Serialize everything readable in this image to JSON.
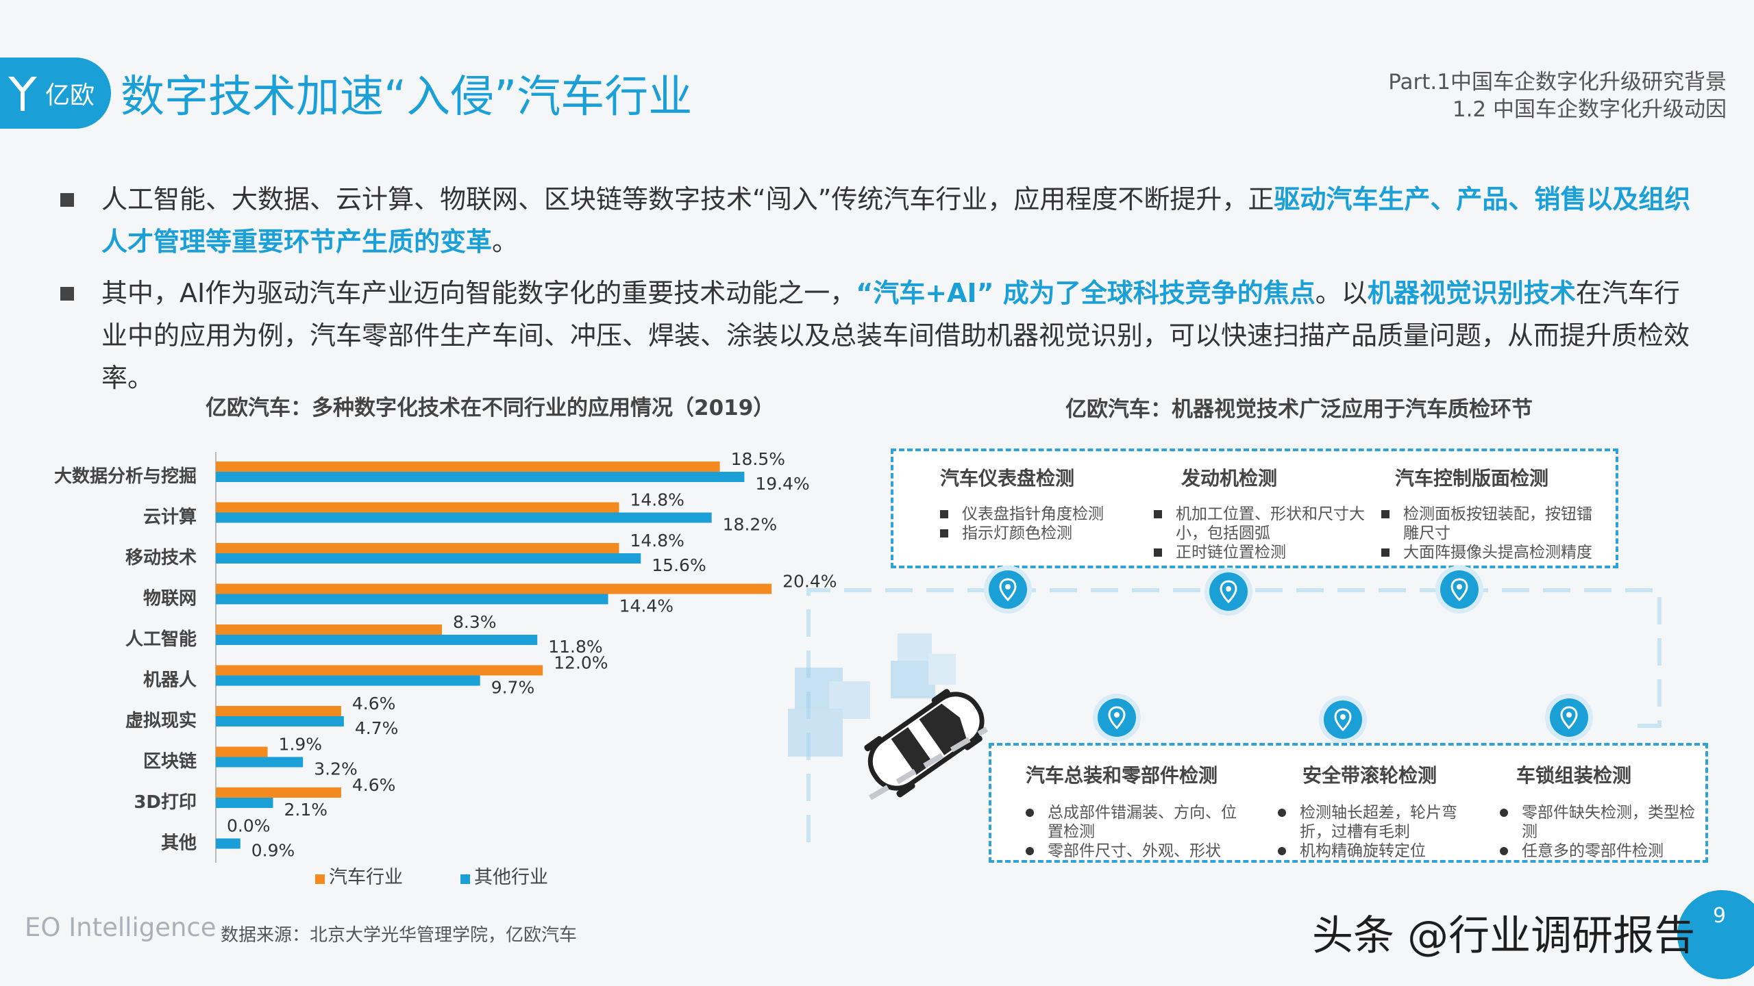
{
  "header": {
    "logo_text": "亿欧",
    "title": "数字技术加速“入侵”汽车行业",
    "part": "Part.1中国车企数字化升级研究背景",
    "section": "1.2 中国车企数字化升级动因"
  },
  "bullets": [
    {
      "segments": [
        {
          "text": "人工智能、大数据、云计算、物联网、区块链等数字技术“闯入”传统汽车行业，应用程度不断提升，正",
          "hl": false
        },
        {
          "text": "驱动汽车生产、产品、销售以及组织人才管理等重要环节产生质的变革",
          "hl": true
        },
        {
          "text": "。",
          "hl": false
        }
      ]
    },
    {
      "segments": [
        {
          "text": "其中，AI作为驱动汽车产业迈向智能数字化的重要技术动能之一，",
          "hl": false
        },
        {
          "text": "“汽车+AI” 成为了全球科技竞争的焦点",
          "hl": true
        },
        {
          "text": "。以",
          "hl": false
        },
        {
          "text": "机器视觉识别技术",
          "hl": true
        },
        {
          "text": "在汽车行业中的应用为例，汽车零部件生产车间、冲压、焊装、涂装以及总装车间借助机器视觉识别，可以快速扫描产品质量问题，从而提升质检效率。",
          "hl": false
        }
      ]
    }
  ],
  "chart_data": {
    "type": "bar",
    "orientation": "horizontal",
    "title": "亿欧汽车：多种数字化技术在不同行业的应用情况（2019）",
    "categories": [
      "大数据分析与挖掘",
      "云计算",
      "移动技术",
      "物联网",
      "人工智能",
      "机器人",
      "虚拟现实",
      "区块链",
      "3D打印",
      "其他"
    ],
    "series": [
      {
        "name": "汽车行业",
        "values": [
          18.5,
          14.8,
          14.8,
          20.4,
          8.3,
          12.0,
          4.6,
          1.9,
          4.6,
          0.0
        ],
        "color": "#f28a1f"
      },
      {
        "name": "其他行业",
        "values": [
          19.4,
          18.2,
          15.6,
          14.4,
          11.8,
          9.7,
          4.7,
          3.2,
          2.1,
          0.9
        ],
        "color": "#1a9fd6"
      }
    ],
    "labels": {
      "汽车行业": [
        "18.5%",
        "14.8%",
        "14.8%",
        "20.4%",
        "8.3%",
        "12.0%",
        "4.6%",
        "1.9%",
        "4.6%",
        "0.0%"
      ],
      "其他行业": [
        "19.4%",
        "18.2%",
        "15.6%",
        "14.4%",
        "11.8%",
        "9.7%",
        "4.7%",
        "3.2%",
        "2.1%",
        "0.9%"
      ]
    },
    "xlim": [
      0,
      21
    ],
    "grid": false,
    "legend": "bottom",
    "legend_labels": [
      "汽车行业",
      "其他行业"
    ]
  },
  "diagram": {
    "title": "亿欧汽车：机器视觉技术广泛应用于汽车质检环节",
    "top_columns": [
      {
        "title": "汽车仪表盘检测",
        "items": [
          "仪表盘指针角度检测",
          "指示灯颜色检测"
        ]
      },
      {
        "title": "发动机检测",
        "items": [
          "机加工位置、形状和尺寸大小，包括圆弧",
          "正时链位置检测"
        ]
      },
      {
        "title": "汽车控制版面检测",
        "items": [
          "检测面板按钮装配，按钮镭雕尺寸",
          "大面阵摄像头提高检测精度"
        ]
      }
    ],
    "bottom_columns": [
      {
        "title": "汽车总装和零部件检测",
        "items": [
          "总成部件错漏装、方向、位置检测",
          "零部件尺寸、外观、形状"
        ]
      },
      {
        "title": "安全带滚轮检测",
        "items": [
          "检测轴长超差，轮片弯折，过槽有毛刺",
          "机构精确旋转定位"
        ]
      },
      {
        "title": "车锁组装检测",
        "items": [
          "零部件缺失检测，类型检测",
          "任意多的零部件检测"
        ]
      }
    ]
  },
  "footer": {
    "brand": "EO Intelligence",
    "source": "数据来源：北京大学光华管理学院，亿欧汽车",
    "watermark": "头条 @行业调研报告",
    "page_number": "9"
  },
  "colors": {
    "accent": "#1a9fd6",
    "auto_bar": "#f28a1f",
    "other_bar": "#1a9fd6",
    "highlight_text": "#1a9fd6"
  },
  "icons": {
    "logo": "eo-logo-icon",
    "pin": "location-pin-icon",
    "car": "car-icon",
    "boxes": "boxes-icon"
  }
}
